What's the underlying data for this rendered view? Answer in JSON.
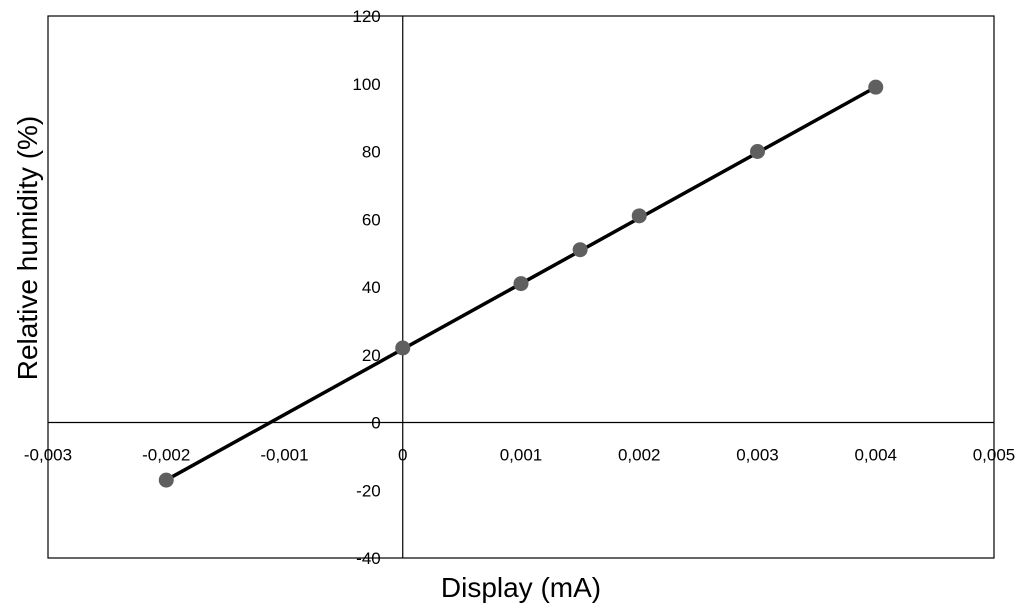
{
  "chart_data": {
    "type": "scatter",
    "title": "",
    "xlabel": "Display (mA)",
    "ylabel": "Relative humidity (%)",
    "xlim": [
      -0.003,
      0.005
    ],
    "ylim": [
      -40,
      120
    ],
    "x_ticks": [
      -0.003,
      -0.002,
      -0.001,
      0,
      0.001,
      0.002,
      0.003,
      0.004,
      0.005
    ],
    "x_tick_labels": [
      "-0,003",
      "-0,002",
      "-0,001",
      "0",
      "0,001",
      "0,002",
      "0,003",
      "0,004",
      "0,005"
    ],
    "y_ticks": [
      -40,
      -20,
      0,
      20,
      40,
      60,
      80,
      100,
      120
    ],
    "y_tick_labels": [
      "-40",
      "-20",
      "0",
      "20",
      "40",
      "60",
      "80",
      "100",
      "120"
    ],
    "grid": false,
    "legend": "none",
    "series": [
      {
        "x": [
          -0.002,
          0,
          0.001,
          0.0015,
          0.002,
          0.003,
          0.004
        ],
        "y": [
          -17,
          22,
          41,
          51,
          61,
          80,
          99
        ],
        "marker_color": "#5f5f5f"
      }
    ],
    "trendline": {
      "x": [
        -0.002,
        0.004
      ],
      "y": [
        -17,
        99
      ],
      "color": "#000000"
    }
  }
}
